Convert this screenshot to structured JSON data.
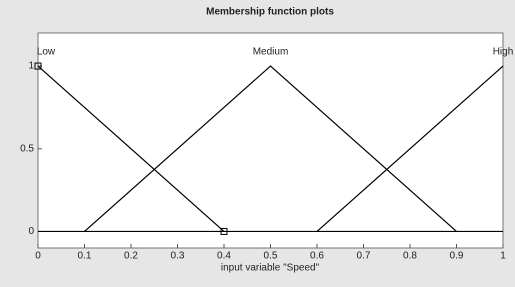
{
  "chart_data": {
    "type": "line",
    "title": "Membership function plots",
    "xlabel": "input variable \"Speed\"",
    "series": [
      {
        "name": "Low",
        "color": "#000000",
        "x": [
          0,
          0.4
        ],
        "values": [
          1,
          0
        ],
        "markers": true
      },
      {
        "name": "Medium",
        "color": "#000000",
        "x": [
          0.1,
          0.5,
          0.9
        ],
        "values": [
          0,
          1,
          0
        ],
        "markers": false
      },
      {
        "name": "High",
        "color": "#000000",
        "x": [
          0.6,
          1
        ],
        "values": [
          0,
          1
        ],
        "markers": false
      }
    ],
    "xlim": [
      0,
      1
    ],
    "ylim": [
      -0.1,
      1.2
    ],
    "xticks": [
      0,
      0.1,
      0.2,
      0.3,
      0.4,
      0.5,
      0.6,
      0.7,
      0.8,
      0.9,
      1
    ],
    "yticks": [
      0,
      0.5,
      1
    ],
    "grid": false
  }
}
